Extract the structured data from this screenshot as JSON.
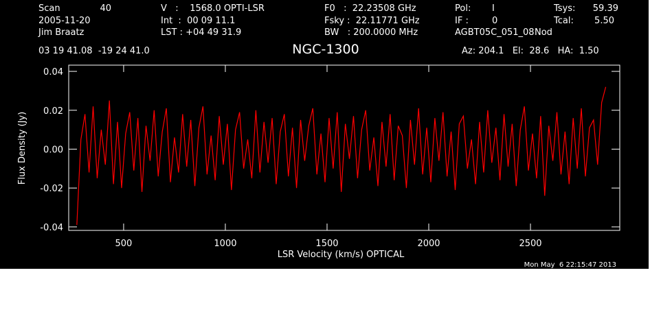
{
  "chart_data": {
    "type": "line",
    "title": "NGC-1300",
    "annotations": [
      "Scan",
      "40",
      "2005-11-20",
      "Jim Braatz",
      "03 19 41.08  -19 24 41.0",
      "V   :    1568.0 OPTI-LSR",
      "Int  :  00 09 11.1",
      "LST : +04 49 31.9",
      "F0   :  22.23508 GHz",
      "Fsky :  22.11771 GHz",
      "BW   : 200.0000 MHz",
      "Pol:",
      "I",
      "IF :",
      "0",
      "AGBT05C_051_08",
      "Nod",
      "Tsys:",
      "59.39",
      "Tcal:",
      "5.50",
      "Az: 204.1   El:  28.6   HA:  1.50",
      "Mon May  6 22:15:47 2013"
    ],
    "x_label": "LSR Velocity (km/s) OPTICAL",
    "y_label": "Flux Density (Jy)",
    "xlim": [
      230,
      2939
    ],
    "ylim": [
      -0.0418,
      0.0432
    ],
    "xticks": [
      500,
      1000,
      1500,
      2000,
      2500
    ],
    "yticks": [
      0.04,
      0.02,
      {
        "value": 0,
        "label": "0.00"
      },
      -0.02,
      -0.04
    ],
    "x": [
      270,
      290,
      310,
      330,
      350,
      370,
      390,
      410,
      430,
      450,
      470,
      490,
      510,
      530,
      550,
      570,
      590,
      610,
      630,
      650,
      670,
      690,
      710,
      730,
      750,
      770,
      790,
      810,
      830,
      850,
      870,
      890,
      910,
      930,
      950,
      970,
      990,
      1010,
      1030,
      1050,
      1070,
      1090,
      1110,
      1130,
      1150,
      1170,
      1190,
      1210,
      1230,
      1250,
      1270,
      1290,
      1310,
      1330,
      1350,
      1370,
      1390,
      1410,
      1430,
      1450,
      1470,
      1490,
      1510,
      1530,
      1550,
      1570,
      1590,
      1610,
      1630,
      1650,
      1670,
      1690,
      1710,
      1730,
      1750,
      1770,
      1790,
      1810,
      1830,
      1850,
      1870,
      1890,
      1910,
      1930,
      1950,
      1970,
      1990,
      2010,
      2030,
      2050,
      2070,
      2090,
      2110,
      2130,
      2150,
      2170,
      2190,
      2210,
      2230,
      2250,
      2270,
      2290,
      2310,
      2330,
      2350,
      2370,
      2390,
      2410,
      2430,
      2450,
      2470,
      2490,
      2510,
      2530,
      2550,
      2570,
      2590,
      2610,
      2630,
      2650,
      2670,
      2690,
      2710,
      2730,
      2750,
      2770,
      2790,
      2810,
      2830,
      2850,
      2870
    ],
    "series": [
      {
        "color": "#ff0000",
        "values": [
          -0.039,
          0.005,
          0.018,
          -0.012,
          0.022,
          -0.015,
          0.01,
          -0.008,
          0.025,
          -0.018,
          0.014,
          -0.02,
          0.008,
          0.019,
          -0.011,
          0.016,
          -0.022,
          0.012,
          -0.006,
          0.02,
          -0.014,
          0.009,
          0.021,
          -0.017,
          0.006,
          -0.012,
          0.018,
          -0.009,
          0.015,
          -0.019,
          0.011,
          0.022,
          -0.013,
          0.007,
          -0.016,
          0.017,
          -0.008,
          0.013,
          -0.021,
          0.01,
          0.019,
          -0.01,
          0.005,
          -0.015,
          0.02,
          -0.012,
          0.014,
          -0.007,
          0.016,
          -0.018,
          0.009,
          0.018,
          -0.014,
          0.011,
          -0.02,
          0.015,
          -0.006,
          0.012,
          0.021,
          -0.013,
          0.008,
          -0.017,
          0.016,
          -0.01,
          0.019,
          -0.022,
          0.013,
          -0.005,
          0.017,
          -0.015,
          0.01,
          0.02,
          -0.011,
          0.006,
          -0.019,
          0.014,
          -0.009,
          0.018,
          -0.016,
          0.012,
          0.007,
          -0.02,
          0.015,
          -0.008,
          0.021,
          -0.013,
          0.011,
          -0.017,
          0.016,
          -0.006,
          0.019,
          -0.014,
          0.009,
          -0.021,
          0.013,
          0.017,
          -0.01,
          0.005,
          -0.018,
          0.014,
          -0.012,
          0.02,
          -0.007,
          0.011,
          -0.016,
          0.018,
          -0.009,
          0.013,
          -0.019,
          0.01,
          0.022,
          -0.011,
          0.008,
          -0.015,
          0.017,
          -0.024,
          0.012,
          -0.006,
          0.019,
          -0.013,
          0.009,
          -0.018,
          0.016,
          -0.01,
          0.021,
          -0.014,
          0.011,
          0.015,
          -0.008,
          0.024,
          0.032
        ]
      }
    ]
  }
}
